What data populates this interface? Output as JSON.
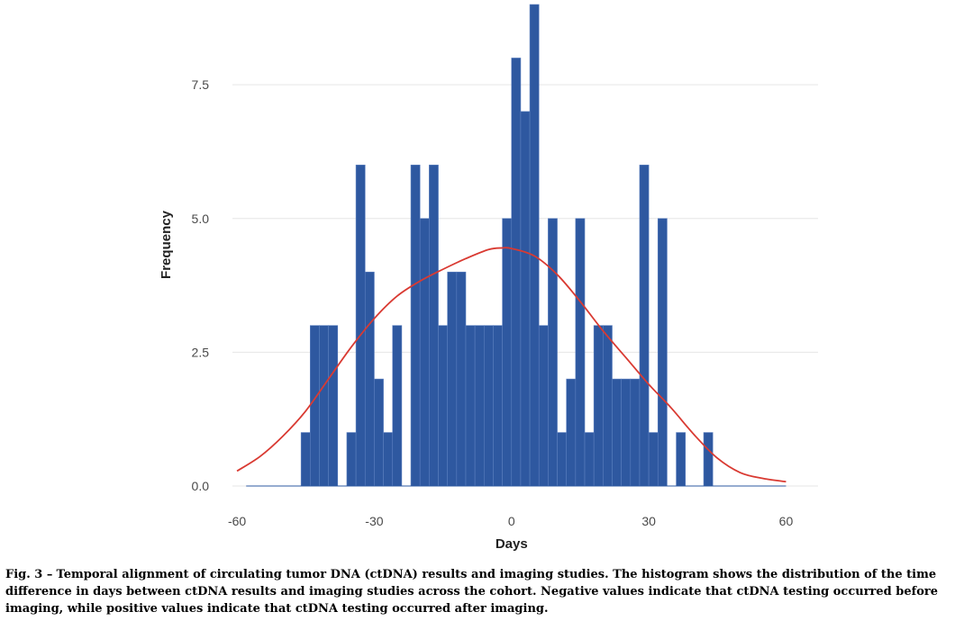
{
  "chart_data": {
    "type": "bar",
    "subtype": "histogram with fitted normal curve",
    "xlabel": "Days",
    "ylabel": "Frequency",
    "xlim": [
      -61,
      67
    ],
    "ylim": [
      0,
      9
    ],
    "x_ticks": [
      -60,
      -30,
      0,
      30,
      60
    ],
    "x_tick_labels": [
      "-60",
      "-30",
      "0",
      "30",
      "60"
    ],
    "y_ticks": [
      0,
      2.5,
      5,
      7.5
    ],
    "y_tick_labels": [
      "0.0",
      "2.5",
      "5.0",
      "7.5"
    ],
    "grid": "horizontal",
    "colors": {
      "bars": "#2e58a0",
      "bar_edge": "#5b7fbf",
      "curve": "#d93a32",
      "grid": "#e6e6e6"
    },
    "bin_width": 2,
    "series": [
      {
        "name": "",
        "bin_starts": [
          -60,
          -58,
          -56,
          -54,
          -52,
          -50,
          -48,
          -46,
          -44,
          -42,
          -40,
          -38,
          -36,
          -34,
          -32,
          -30,
          -28,
          -26,
          -24,
          -22,
          -20,
          -18,
          -16,
          -14,
          -12,
          -10,
          -8,
          -6,
          -4,
          -2,
          0,
          2,
          4,
          6,
          8,
          10,
          12,
          14,
          16,
          18,
          20,
          22,
          24,
          26,
          28,
          30,
          32,
          34,
          36,
          38,
          40,
          42,
          44,
          46,
          48,
          50,
          52,
          54,
          56,
          58
        ],
        "values": [
          0,
          0,
          0,
          0,
          0,
          0,
          0,
          1,
          3,
          3,
          3,
          0,
          1,
          6,
          4,
          2,
          1,
          3,
          0,
          6,
          5,
          6,
          3,
          4,
          4,
          3,
          3,
          3,
          3,
          5,
          8,
          7,
          9,
          3,
          5,
          1,
          2,
          5,
          1,
          3,
          3,
          2,
          2,
          2,
          6,
          1,
          5,
          0,
          1,
          0,
          0,
          1,
          0,
          0,
          0,
          0,
          0,
          0,
          0,
          0
        ]
      }
    ],
    "curve": {
      "type": "normal density (scaled)",
      "x": [
        -60,
        -55,
        -50,
        -45,
        -40,
        -35,
        -30,
        -25,
        -20,
        -15,
        -10,
        -5,
        -2,
        0,
        5,
        10,
        15,
        20,
        25,
        30,
        35,
        40,
        45,
        50,
        55,
        60
      ],
      "y": [
        0.28,
        0.55,
        0.93,
        1.4,
        2.0,
        2.6,
        3.13,
        3.55,
        3.83,
        4.05,
        4.25,
        4.42,
        4.45,
        4.44,
        4.3,
        3.95,
        3.45,
        2.9,
        2.4,
        1.9,
        1.45,
        0.95,
        0.52,
        0.25,
        0.14,
        0.08
      ]
    }
  },
  "caption": {
    "label": "Fig. 3 –",
    "text": "Temporal alignment of circulating tumor DNA (ctDNA) results and imaging studies. The histogram shows the distribution of the time difference in days between ctDNA results and imaging studies across the cohort. Negative values indicate that ctDNA testing occurred before imaging, while positive values indicate that ctDNA testing occurred after imaging."
  }
}
